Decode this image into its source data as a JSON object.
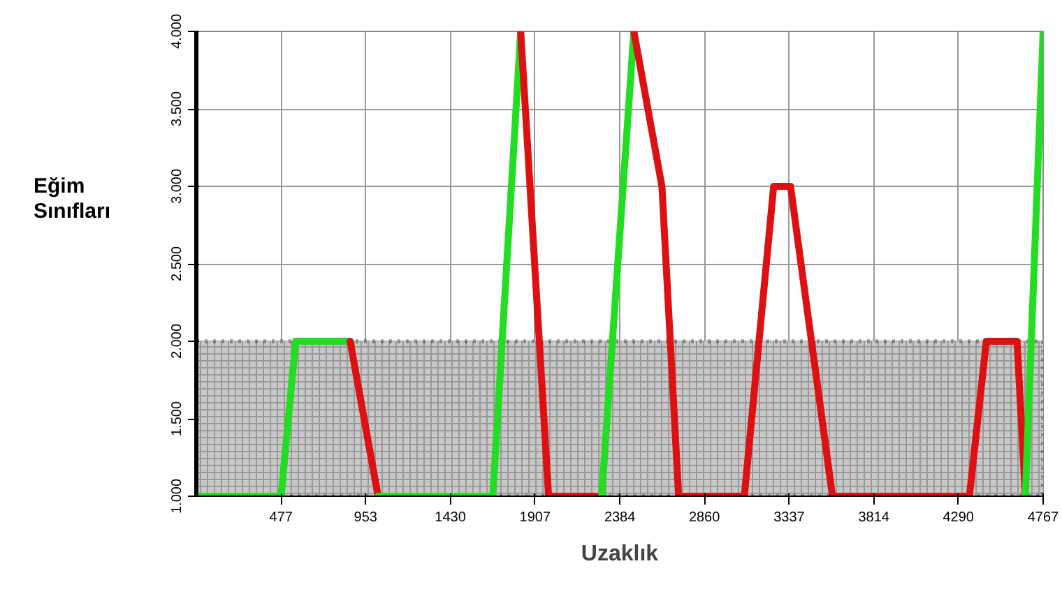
{
  "chart_data": {
    "type": "line",
    "xlabel": "Uzaklık",
    "ylabel": "Eğim\nSınıfları",
    "xlim": [
      0,
      4767
    ],
    "ylim": [
      1,
      4
    ],
    "xticks": [
      477,
      953,
      1430,
      1907,
      2384,
      2860,
      3337,
      3814,
      4290,
      4767
    ],
    "yticks": [
      {
        "value": 1,
        "label": "1.000"
      },
      {
        "value": 1.5,
        "label": "1.500"
      },
      {
        "value": 2,
        "label": "2.000"
      },
      {
        "value": 2.5,
        "label": "2.500"
      },
      {
        "value": 3,
        "label": "3.000"
      },
      {
        "value": 3.5,
        "label": "3.500"
      },
      {
        "value": 4,
        "label": "4.000"
      }
    ],
    "grid": true,
    "marker": "none",
    "line_style": "solid",
    "bands": [
      {
        "axis": "y",
        "from": 1,
        "to": 2,
        "color": "#c8c8c8"
      }
    ],
    "series": [
      {
        "color": "#22dd22",
        "x": [
          0,
          477,
          559,
          866
        ],
        "values": [
          1,
          1,
          2,
          2
        ]
      },
      {
        "color": "#dd1111",
        "x": [
          866,
          1023
        ],
        "values": [
          2,
          1
        ]
      },
      {
        "color": "#22dd22",
        "x": [
          1023,
          1669,
          1826
        ],
        "values": [
          1,
          1,
          4
        ]
      },
      {
        "color": "#dd1111",
        "x": [
          1826,
          1983,
          2282
        ],
        "values": [
          4,
          1,
          1
        ]
      },
      {
        "color": "#22dd22",
        "x": [
          2282,
          2463
        ],
        "values": [
          1,
          4
        ]
      },
      {
        "color": "#dd1111",
        "x": [
          2463,
          2621,
          2715,
          3085,
          3250,
          3345,
          3581,
          4352,
          4447,
          4620,
          4667
        ],
        "values": [
          4,
          3,
          1,
          1,
          3,
          3,
          1,
          1,
          2,
          2,
          1
        ]
      },
      {
        "color": "#22dd22",
        "x": [
          4667,
          4767
        ],
        "values": [
          1,
          4
        ]
      }
    ]
  }
}
